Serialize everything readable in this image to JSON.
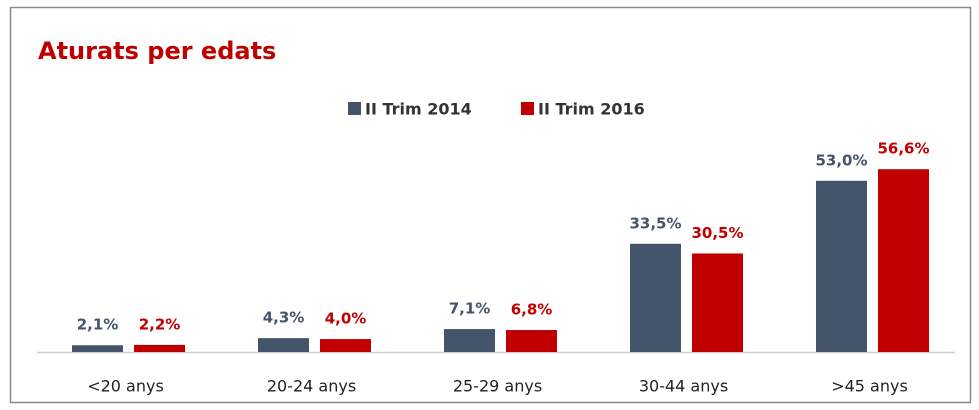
{
  "chart_data": {
    "type": "bar",
    "title": "Aturats per edats",
    "categories": [
      "<20 anys",
      "20-24 anys",
      "25-29 anys",
      "30-44 anys",
      ">45 anys"
    ],
    "series": [
      {
        "name": "II Trim 2014",
        "color": "#44546a",
        "values": [
          2.1,
          4.3,
          7.1,
          33.5,
          53.0
        ],
        "value_labels": [
          "2,1%",
          "4,3%",
          "7,1%",
          "33,5%",
          "53,0%"
        ]
      },
      {
        "name": "II Trim 2016",
        "color": "#c00000",
        "values": [
          2.2,
          4.0,
          6.8,
          30.5,
          56.6
        ],
        "value_labels": [
          "2,2%",
          "4,0%",
          "6,8%",
          "30,5%",
          "56,6%"
        ]
      }
    ],
    "legend": "top"
  }
}
